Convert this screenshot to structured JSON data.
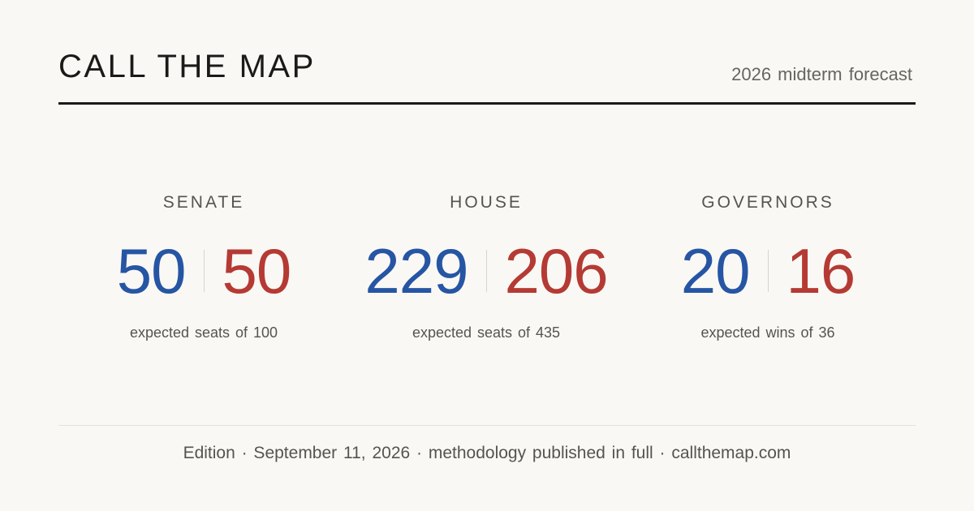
{
  "header": {
    "brand": "CALL THE MAP",
    "tagline": "2026 midterm forecast"
  },
  "colors": {
    "democrat": "#2655a4",
    "republican": "#b53a34",
    "background": "#f9f8f4",
    "text": "#1a1a1a"
  },
  "tiles": [
    {
      "label": "SENATE",
      "dem": "50",
      "rep": "50",
      "caption": "expected seats of 100"
    },
    {
      "label": "HOUSE",
      "dem": "229",
      "rep": "206",
      "caption": "expected seats of 435"
    },
    {
      "label": "GOVERNORS",
      "dem": "20",
      "rep": "16",
      "caption": "expected wins of 36"
    }
  ],
  "footer": {
    "text": "Edition · September 11, 2026 · methodology published in full · callthemap.com"
  }
}
